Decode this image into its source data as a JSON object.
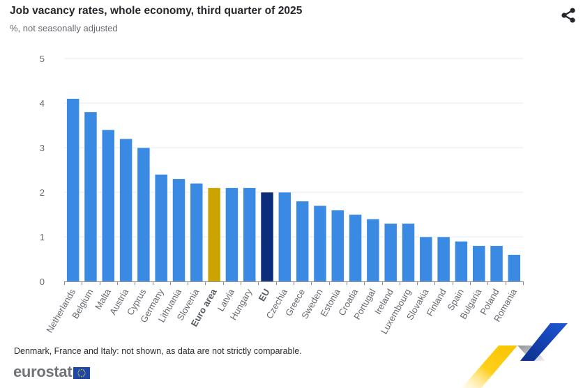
{
  "header": {
    "title": "Job vacancy rates, whole economy, third quarter of 2025",
    "subtitle": "%, not seasonally adjusted",
    "share_icon": "share-icon"
  },
  "footer": {
    "note": "Denmark, France and Italy: not shown, as data are not strictly comparable.",
    "logo_text": "eurostat",
    "flag_icon": "eu-flag-icon"
  },
  "colors": {
    "country_bar": "#3a8ae3",
    "euro_area_bar": "#cca300",
    "eu_bar": "#0b2d7a",
    "gridline": "#e6ebf2",
    "axis": "#888888",
    "tick_label": "#666a70"
  },
  "chart_data": {
    "type": "bar",
    "title": "Job vacancy rates, whole economy, third quarter of 2025",
    "subtitle": "%, not seasonally adjusted",
    "xlabel": "",
    "ylabel": "",
    "ylim": [
      0,
      5
    ],
    "yticks": [
      0,
      1,
      2,
      3,
      4,
      5
    ],
    "grid": true,
    "legend": "none",
    "categories": [
      "Netherlands",
      "Belgium",
      "Malta",
      "Austria",
      "Cyprus",
      "Germany",
      "Lithuania",
      "Slovenia",
      "Euro area",
      "Latvia",
      "Hungary",
      "EU",
      "Czechia",
      "Greece",
      "Sweden",
      "Estonia",
      "Croatia",
      "Portugal",
      "Ireland",
      "Luxembourg",
      "Slovakia",
      "Finland",
      "Spain",
      "Bulgaria",
      "Poland",
      "Romania"
    ],
    "values": [
      4.1,
      3.8,
      3.4,
      3.2,
      3.0,
      2.4,
      2.3,
      2.2,
      2.1,
      2.1,
      2.1,
      2.0,
      2.0,
      1.8,
      1.7,
      1.6,
      1.5,
      1.4,
      1.3,
      1.3,
      1.0,
      1.0,
      0.9,
      0.8,
      0.8,
      0.6
    ],
    "highlighted": {
      "Euro area": "euro_area_bar",
      "EU": "eu_bar"
    },
    "bold_labels": [
      "Euro area",
      "EU"
    ]
  }
}
